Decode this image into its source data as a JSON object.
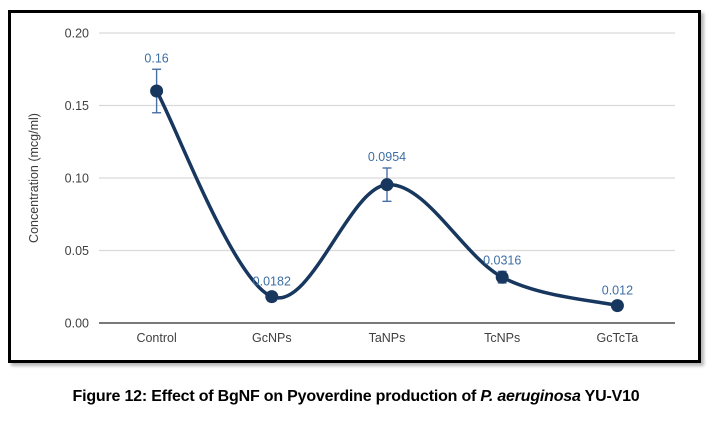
{
  "figure": {
    "caption": {
      "prefix": "Figure 12: Effect of BgNF on Pyoverdine production of ",
      "italic": "P. aeruginosa",
      "suffix": " YU-V10"
    }
  },
  "chart_data": {
    "type": "line",
    "title": "",
    "xlabel": "",
    "ylabel": "Concentration (mcg/ml)",
    "categories": [
      "Control",
      "GcNPs",
      "TaNPs",
      "TcNPs",
      "GcTcTa"
    ],
    "values": [
      0.16,
      0.0182,
      0.0954,
      0.0316,
      0.012
    ],
    "point_labels": [
      "0.16",
      "0.0182",
      "0.0954",
      "0.0316",
      "0.012"
    ],
    "error_bars": [
      0.015,
      0.003,
      0.0115,
      0.004,
      0.003
    ],
    "ylim": [
      0,
      0.2
    ],
    "yticks": [
      0,
      0.05,
      0.1,
      0.15,
      0.2
    ],
    "ytick_labels": [
      "0.00",
      "0.05",
      "0.10",
      "0.15",
      "0.20"
    ],
    "grid": true,
    "legend": "none",
    "smooth": true,
    "colors": {
      "line": "#17375E",
      "marker": "#17375E",
      "error_bar": "#4a6fa5",
      "data_label": "#3d6ea5",
      "gridline": "#d9d9d9",
      "axis_line": "#4d4d4d",
      "tick_label": "#404040",
      "axis_title": "#3b3b3b"
    }
  }
}
